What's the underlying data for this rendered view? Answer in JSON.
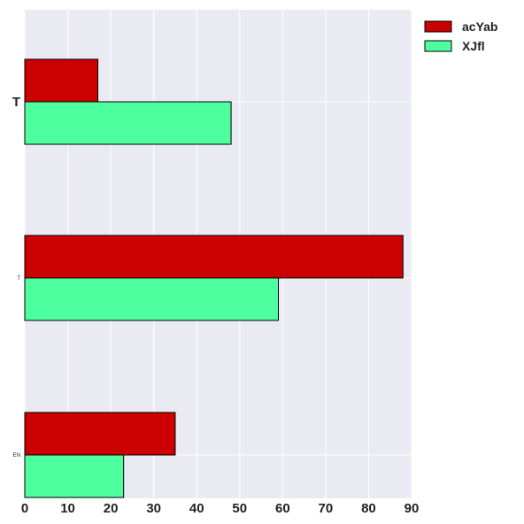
{
  "chart_data": {
    "type": "bar",
    "orientation": "horizontal",
    "categories": [
      "T",
      "T",
      "EN"
    ],
    "series": [
      {
        "name": "acYab",
        "values": [
          17,
          88,
          35
        ],
        "color": "#cc0000"
      },
      {
        "name": "XJfl",
        "values": [
          48,
          59,
          23
        ],
        "color": "#4dff9f"
      }
    ],
    "xlim": [
      0,
      90
    ],
    "xticks": [
      "0",
      "10",
      "20",
      "30",
      "40",
      "50",
      "60",
      "70",
      "80",
      "90"
    ],
    "grid": true,
    "legend_position": "top-right",
    "title": "",
    "xlabel": "",
    "ylabel": ""
  }
}
